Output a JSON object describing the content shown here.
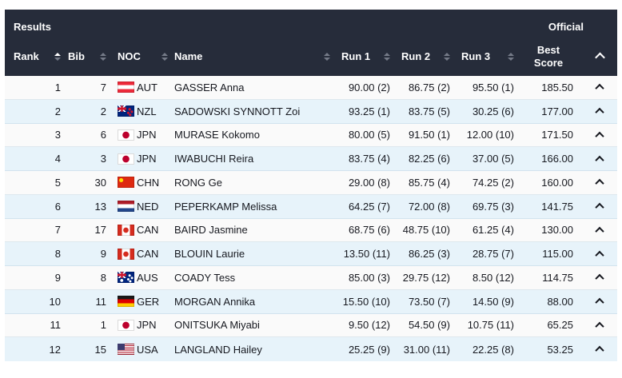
{
  "header": {
    "title": "Results",
    "status": "Official",
    "columns": {
      "rank": "Rank",
      "bib": "Bib",
      "noc": "NOC",
      "name": "Name",
      "run1": "Run 1",
      "run2": "Run 2",
      "run3": "Run 3",
      "best_line1": "Best",
      "best_line2": "Score"
    },
    "sort": {
      "active_column": "rank",
      "active_direction": "asc"
    }
  },
  "table": {
    "rows": [
      {
        "rank": "1",
        "bib": "7",
        "noc": "AUT",
        "name": "GASSER Anna",
        "run1": "90.00 (2)",
        "run2": "86.75 (2)",
        "run3": "95.50 (1)",
        "best": "185.50"
      },
      {
        "rank": "2",
        "bib": "2",
        "noc": "NZL",
        "name": "SADOWSKI SYNNOTT Zoi",
        "run1": "93.25 (1)",
        "run2": "83.75 (5)",
        "run3": "30.25 (6)",
        "best": "177.00"
      },
      {
        "rank": "3",
        "bib": "6",
        "noc": "JPN",
        "name": "MURASE Kokomo",
        "run1": "80.00 (5)",
        "run2": "91.50 (1)",
        "run3": "12.00 (10)",
        "best": "171.50"
      },
      {
        "rank": "4",
        "bib": "3",
        "noc": "JPN",
        "name": "IWABUCHI Reira",
        "run1": "83.75 (4)",
        "run2": "82.25 (6)",
        "run3": "37.00 (5)",
        "best": "166.00"
      },
      {
        "rank": "5",
        "bib": "30",
        "noc": "CHN",
        "name": "RONG Ge",
        "run1": "29.00 (8)",
        "run2": "85.75 (4)",
        "run3": "74.25 (2)",
        "best": "160.00"
      },
      {
        "rank": "6",
        "bib": "13",
        "noc": "NED",
        "name": "PEPERKAMP Melissa",
        "run1": "64.25 (7)",
        "run2": "72.00 (8)",
        "run3": "69.75 (3)",
        "best": "141.75"
      },
      {
        "rank": "7",
        "bib": "17",
        "noc": "CAN",
        "name": "BAIRD Jasmine",
        "run1": "68.75 (6)",
        "run2": "48.75 (10)",
        "run3": "61.25 (4)",
        "best": "130.00"
      },
      {
        "rank": "8",
        "bib": "9",
        "noc": "CAN",
        "name": "BLOUIN Laurie",
        "run1": "13.50 (11)",
        "run2": "86.25 (3)",
        "run3": "28.75 (7)",
        "best": "115.00"
      },
      {
        "rank": "9",
        "bib": "8",
        "noc": "AUS",
        "name": "COADY Tess",
        "run1": "85.00 (3)",
        "run2": "29.75 (12)",
        "run3": "8.50 (12)",
        "best": "114.75"
      },
      {
        "rank": "10",
        "bib": "11",
        "noc": "GER",
        "name": "MORGAN Annika",
        "run1": "15.50 (10)",
        "run2": "73.50 (7)",
        "run3": "14.50 (9)",
        "best": "88.00"
      },
      {
        "rank": "11",
        "bib": "1",
        "noc": "JPN",
        "name": "ONITSUKA Miyabi",
        "run1": "9.50 (12)",
        "run2": "54.50 (9)",
        "run3": "10.75 (11)",
        "best": "65.25"
      },
      {
        "rank": "12",
        "bib": "15",
        "noc": "USA",
        "name": "LANGLAND Hailey",
        "run1": "25.25 (9)",
        "run2": "31.00 (11)",
        "run3": "22.25 (8)",
        "best": "53.25"
      }
    ]
  },
  "icons": {
    "sort": "sort-updown-icon",
    "row_expand": "chevron-up-icon"
  },
  "colors": {
    "header-bg": "#262c3a",
    "header-text": "#ffffff",
    "row-base": "#fafafa",
    "row-alt": "#e7f3fa",
    "text": "#16181f",
    "sort-gray": "#747a87"
  }
}
